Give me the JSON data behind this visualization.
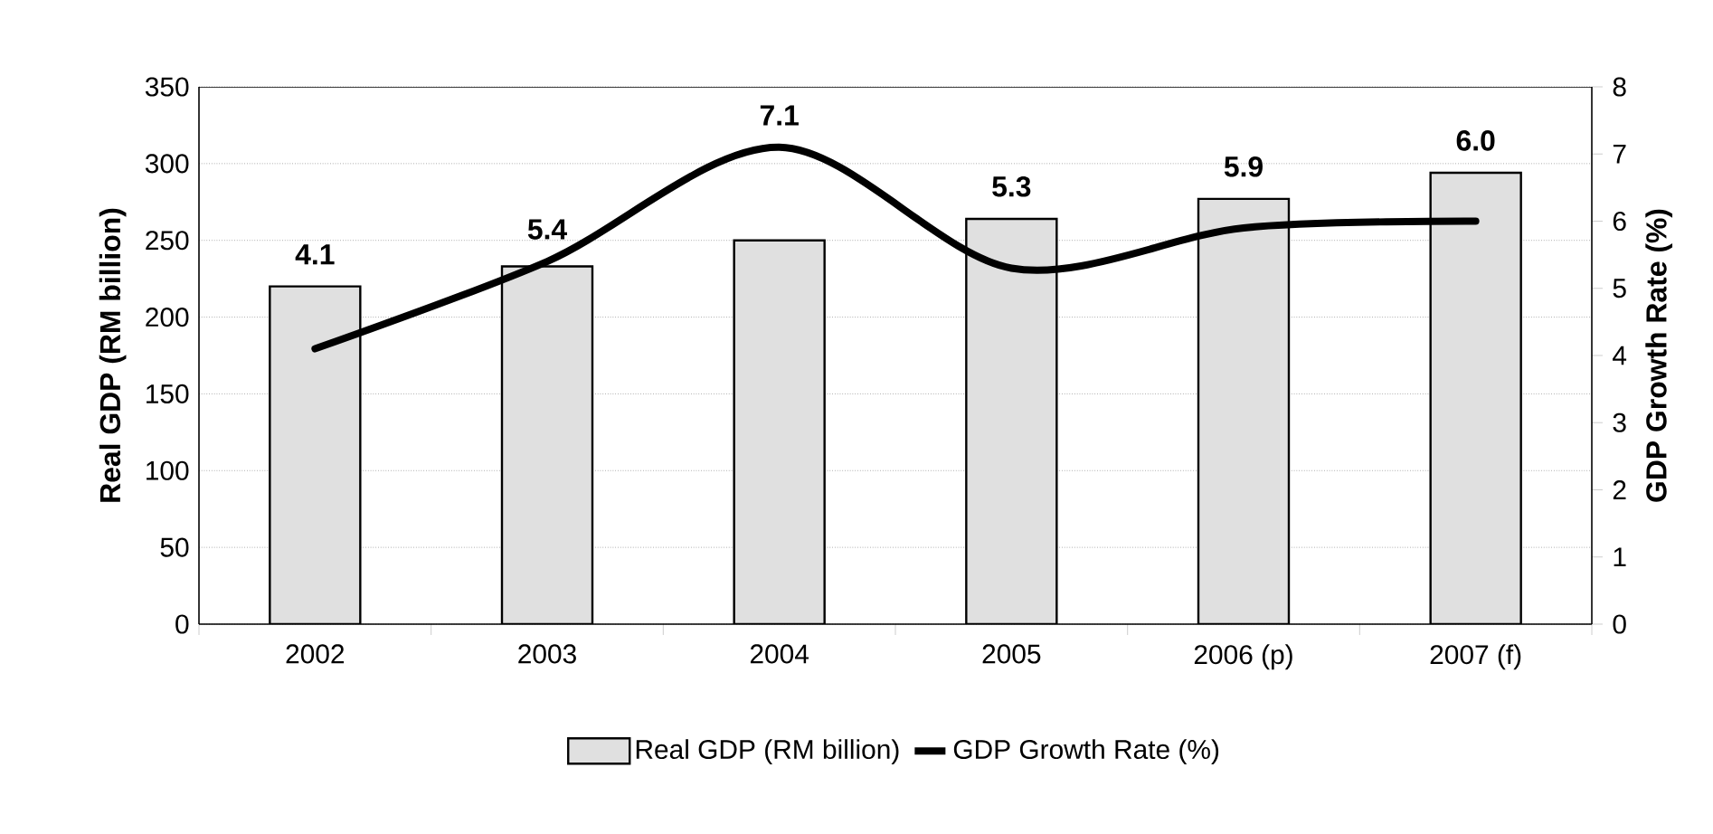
{
  "chart_data": {
    "type": "bar",
    "categories": [
      "2002",
      "2003",
      "2004",
      "2005",
      "2006 (p)",
      "2007 (f)"
    ],
    "series": [
      {
        "name": "Real GDP (RM billion)",
        "color": "#e0e0e0",
        "values": [
          220,
          233,
          250,
          264,
          277,
          294
        ]
      },
      {
        "name": "GDP Growth Rate (%)",
        "type": "line",
        "axis": "y2",
        "color": "#000000",
        "values": [
          4.1,
          5.4,
          7.1,
          5.3,
          5.9,
          6.0
        ],
        "value_labels": [
          "4.1",
          "5.4",
          "7.1",
          "5.3",
          "5.9",
          "6.0"
        ]
      }
    ],
    "ylabel": "Real GDP (RM billion)",
    "y2label": "GDP Growth Rate (%)",
    "ylim": [
      0,
      350
    ],
    "yticks": [
      0,
      50,
      100,
      150,
      200,
      250,
      300,
      350
    ],
    "y2lim": [
      0,
      8
    ],
    "y2ticks": [
      0,
      1,
      2,
      3,
      4,
      5,
      6,
      7,
      8
    ],
    "grid": "y",
    "legend": "bottom"
  }
}
